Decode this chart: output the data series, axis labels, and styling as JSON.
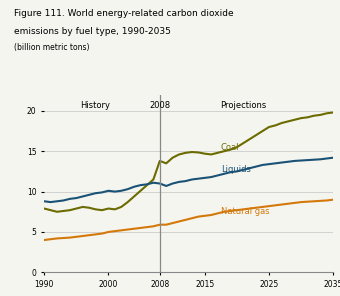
{
  "title_line1": "Figure 111. World energy-related carbon dioxide",
  "title_line2": "emissions by fuel type, 1990-2035",
  "subtitle": "(billion metric tons)",
  "history_label": "History",
  "projections_label": "Projections",
  "divider_year": 2008,
  "ylim": [
    0,
    22
  ],
  "yticks": [
    0,
    5,
    10,
    15,
    20
  ],
  "xlim": [
    1990,
    2035
  ],
  "xticks": [
    1990,
    2000,
    2008,
    2015,
    2025,
    2035
  ],
  "coal_years": [
    1990,
    1991,
    1992,
    1993,
    1994,
    1995,
    1996,
    1997,
    1998,
    1999,
    2000,
    2001,
    2002,
    2003,
    2004,
    2005,
    2006,
    2007,
    2008,
    2009,
    2010,
    2011,
    2012,
    2013,
    2014,
    2015,
    2016,
    2017,
    2018,
    2019,
    2020,
    2021,
    2022,
    2023,
    2024,
    2025,
    2026,
    2027,
    2028,
    2029,
    2030,
    2031,
    2032,
    2033,
    2034,
    2035
  ],
  "coal_values": [
    7.9,
    7.7,
    7.5,
    7.6,
    7.7,
    7.9,
    8.1,
    8.0,
    7.8,
    7.7,
    7.9,
    7.8,
    8.1,
    8.7,
    9.4,
    10.1,
    10.8,
    11.5,
    13.8,
    13.5,
    14.2,
    14.6,
    14.8,
    14.9,
    14.85,
    14.7,
    14.6,
    14.8,
    15.0,
    15.2,
    15.5,
    16.0,
    16.5,
    17.0,
    17.5,
    18.0,
    18.2,
    18.5,
    18.7,
    18.9,
    19.1,
    19.2,
    19.4,
    19.5,
    19.7,
    19.8
  ],
  "liquids_years": [
    1990,
    1991,
    1992,
    1993,
    1994,
    1995,
    1996,
    1997,
    1998,
    1999,
    2000,
    2001,
    2002,
    2003,
    2004,
    2005,
    2006,
    2007,
    2008,
    2009,
    2010,
    2011,
    2012,
    2013,
    2014,
    2015,
    2016,
    2017,
    2018,
    2019,
    2020,
    2021,
    2022,
    2023,
    2024,
    2025,
    2026,
    2027,
    2028,
    2029,
    2030,
    2031,
    2032,
    2033,
    2034,
    2035
  ],
  "liquids_values": [
    8.8,
    8.7,
    8.8,
    8.9,
    9.1,
    9.2,
    9.4,
    9.6,
    9.8,
    9.9,
    10.1,
    10.0,
    10.1,
    10.3,
    10.6,
    10.8,
    10.9,
    11.1,
    11.0,
    10.7,
    11.0,
    11.2,
    11.3,
    11.5,
    11.6,
    11.7,
    11.8,
    12.0,
    12.2,
    12.4,
    12.5,
    12.7,
    12.9,
    13.1,
    13.3,
    13.4,
    13.5,
    13.6,
    13.7,
    13.8,
    13.85,
    13.9,
    13.95,
    14.0,
    14.1,
    14.2
  ],
  "natgas_years": [
    1990,
    1991,
    1992,
    1993,
    1994,
    1995,
    1996,
    1997,
    1998,
    1999,
    2000,
    2001,
    2002,
    2003,
    2004,
    2005,
    2006,
    2007,
    2008,
    2009,
    2010,
    2011,
    2012,
    2013,
    2014,
    2015,
    2016,
    2017,
    2018,
    2019,
    2020,
    2021,
    2022,
    2023,
    2024,
    2025,
    2026,
    2027,
    2028,
    2029,
    2030,
    2031,
    2032,
    2033,
    2034,
    2035
  ],
  "natgas_values": [
    4.0,
    4.1,
    4.2,
    4.25,
    4.3,
    4.4,
    4.5,
    4.6,
    4.7,
    4.8,
    5.0,
    5.1,
    5.2,
    5.3,
    5.4,
    5.5,
    5.6,
    5.7,
    5.9,
    5.9,
    6.1,
    6.3,
    6.5,
    6.7,
    6.9,
    7.0,
    7.1,
    7.3,
    7.5,
    7.6,
    7.7,
    7.8,
    7.9,
    8.0,
    8.1,
    8.2,
    8.3,
    8.4,
    8.5,
    8.6,
    8.7,
    8.75,
    8.8,
    8.85,
    8.9,
    9.0
  ],
  "coal_color": "#6b6b00",
  "liquids_color": "#1a5276",
  "natgas_color": "#d4780a",
  "divider_color": "#888888",
  "grid_color": "#cccccc",
  "bg_color": "#f5f5f0",
  "plot_bg": "#f5f5f0",
  "coal_label": "Coal",
  "liquids_label": "Liquids",
  "natgas_label": "Natural gas"
}
